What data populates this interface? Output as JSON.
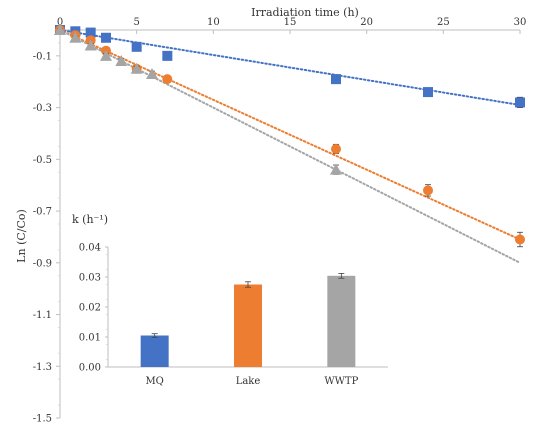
{
  "chart_data": [
    {
      "type": "scatter",
      "title": "",
      "xlabel": "Irradiation time (h)",
      "ylabel": "Ln (C/Co)",
      "xlim": [
        0,
        30
      ],
      "ylim": [
        -1.5,
        0
      ],
      "x_ticks": [
        0,
        5,
        10,
        15,
        20,
        25,
        30
      ],
      "y_ticks": [
        -0.1,
        -0.3,
        -0.5,
        -0.7,
        -0.9,
        -1.1,
        -1.3,
        -1.5
      ],
      "x_axis_position": "top",
      "grid": false,
      "legend": "none",
      "series": [
        {
          "color": "#4472C4",
          "marker": "square",
          "x": [
            0,
            1,
            2,
            3,
            5,
            7,
            18,
            24,
            30
          ],
          "y": [
            0.0,
            -0.005,
            -0.01,
            -0.03,
            -0.065,
            -0.1,
            -0.19,
            -0.24,
            -0.28
          ],
          "error": [
            0.005,
            0.005,
            0.005,
            0.006,
            0.008,
            0.008,
            0.012,
            0.015,
            0.02
          ],
          "trendline": {
            "x": [
              0,
              30
            ],
            "y": [
              0.0,
              -0.29
            ],
            "style": "dotted"
          }
        },
        {
          "color": "#ED7D31",
          "marker": "circle",
          "x": [
            0,
            1,
            2,
            3,
            5,
            7,
            18,
            24,
            30
          ],
          "y": [
            0.0,
            -0.02,
            -0.04,
            -0.08,
            -0.15,
            -0.19,
            -0.46,
            -0.62,
            -0.81
          ],
          "error": [
            0.005,
            0.005,
            0.006,
            0.008,
            0.01,
            0.012,
            0.018,
            0.022,
            0.028
          ],
          "trendline": {
            "x": [
              0,
              30
            ],
            "y": [
              0.0,
              -0.81
            ],
            "style": "dotted"
          }
        },
        {
          "color": "#A5A5A5",
          "marker": "triangle",
          "x": [
            0,
            1,
            2,
            3,
            4,
            5,
            6,
            18
          ],
          "y": [
            0.0,
            -0.03,
            -0.06,
            -0.1,
            -0.12,
            -0.15,
            -0.17,
            -0.54
          ],
          "error": [
            0.005,
            0.006,
            0.007,
            0.008,
            0.009,
            0.01,
            0.011,
            0.018
          ],
          "trendline": {
            "x": [
              0,
              30
            ],
            "y": [
              0.0,
              -0.9
            ],
            "style": "dotted"
          }
        }
      ]
    },
    {
      "type": "bar",
      "title": "k (h⁻¹)",
      "categories": [
        "MQ",
        "Lake",
        "WWTP"
      ],
      "values": [
        0.0105,
        0.0275,
        0.0304
      ],
      "errors": [
        0.0006,
        0.0009,
        0.0008
      ],
      "colors": [
        "#4472C4",
        "#ED7D31",
        "#A5A5A5"
      ],
      "ylim": [
        0,
        0.04
      ],
      "y_ticks": [
        0.0,
        0.01,
        0.02,
        0.03,
        0.04
      ],
      "y_tick_labels": [
        "0.00",
        "0.01",
        "0.02",
        "0.03",
        "0.04"
      ],
      "grid": false,
      "legend": "none"
    }
  ]
}
